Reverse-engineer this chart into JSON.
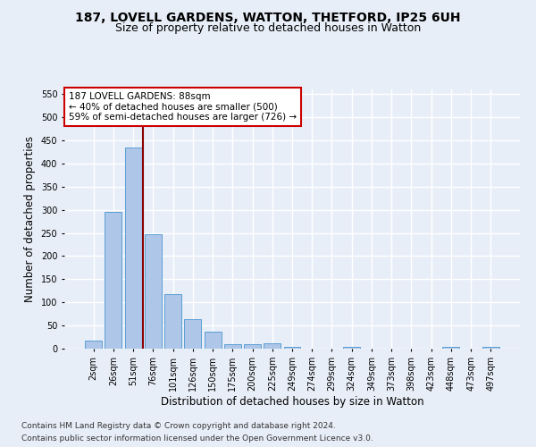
{
  "title1": "187, LOVELL GARDENS, WATTON, THETFORD, IP25 6UH",
  "title2": "Size of property relative to detached houses in Watton",
  "xlabel": "Distribution of detached houses by size in Watton",
  "ylabel": "Number of detached properties",
  "footnote1": "Contains HM Land Registry data © Crown copyright and database right 2024.",
  "footnote2": "Contains public sector information licensed under the Open Government Licence v3.0.",
  "annotation_line1": "187 LOVELL GARDENS: 88sqm",
  "annotation_line2": "← 40% of detached houses are smaller (500)",
  "annotation_line3": "59% of semi-detached houses are larger (726) →",
  "bar_categories": [
    "2sqm",
    "26sqm",
    "51sqm",
    "76sqm",
    "101sqm",
    "126sqm",
    "150sqm",
    "175sqm",
    "200sqm",
    "225sqm",
    "249sqm",
    "274sqm",
    "299sqm",
    "324sqm",
    "349sqm",
    "373sqm",
    "398sqm",
    "423sqm",
    "448sqm",
    "473sqm",
    "497sqm"
  ],
  "bar_values": [
    17,
    295,
    435,
    248,
    118,
    64,
    37,
    9,
    10,
    12,
    4,
    0,
    0,
    3,
    0,
    0,
    0,
    0,
    4,
    0,
    3
  ],
  "bar_color": "#aec6e8",
  "bar_edge_color": "#5a9fd4",
  "vline_x": 2.5,
  "vline_color": "#8b0000",
  "ylim": [
    0,
    560
  ],
  "yticks": [
    0,
    50,
    100,
    150,
    200,
    250,
    300,
    350,
    400,
    450,
    500,
    550
  ],
  "annotation_box_color": "#ffffff",
  "annotation_box_edgecolor": "#cc0000",
  "bg_color": "#e8eef8",
  "grid_color": "#ffffff",
  "title1_fontsize": 10,
  "title2_fontsize": 9,
  "xlabel_fontsize": 8.5,
  "ylabel_fontsize": 8.5,
  "footnote_fontsize": 6.5,
  "tick_fontsize": 7,
  "annotation_fontsize": 7.5
}
